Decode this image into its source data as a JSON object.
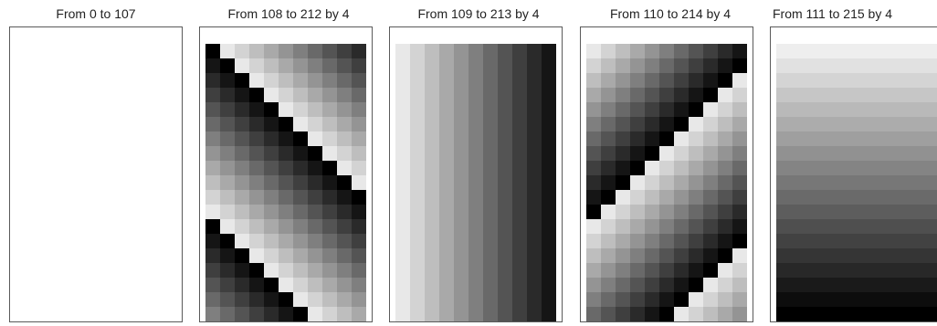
{
  "panels": [
    {
      "title": "From 0 to 107",
      "start": 0,
      "end": 107,
      "step": 1
    },
    {
      "title": "From 108 to 212 by 4",
      "start": 108,
      "end": 212,
      "step": 4
    },
    {
      "title": "From 109 to 213 by 4",
      "start": 109,
      "end": 213,
      "step": 4
    },
    {
      "title": "From 110 to 214 by 4",
      "start": 110,
      "end": 214,
      "step": 4
    },
    {
      "title": "From 111 to 215 by 4",
      "start": 111,
      "end": 215,
      "step": 4
    }
  ],
  "colors": {
    "frame_border": "#5a5a5a",
    "title_text": "#222222",
    "background": "#ffffff"
  }
}
